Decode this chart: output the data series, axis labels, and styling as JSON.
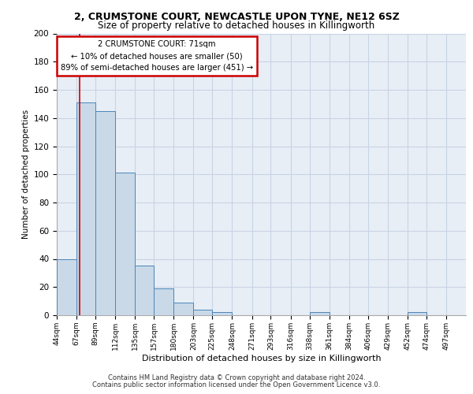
{
  "title1": "2, CRUMSTONE COURT, NEWCASTLE UPON TYNE, NE12 6SZ",
  "title2": "Size of property relative to detached houses in Killingworth",
  "xlabel": "Distribution of detached houses by size in Killingworth",
  "ylabel": "Number of detached properties",
  "bar_edges": [
    44,
    67,
    89,
    112,
    135,
    157,
    180,
    203,
    225,
    248,
    271,
    293,
    316,
    338,
    361,
    384,
    406,
    429,
    452,
    474,
    497
  ],
  "bar_heights": [
    40,
    151,
    145,
    101,
    35,
    19,
    9,
    4,
    2,
    0,
    0,
    0,
    0,
    2,
    0,
    0,
    0,
    0,
    2,
    0,
    0
  ],
  "bar_color": "#c9d9e8",
  "bar_edge_color": "#4a86b8",
  "property_size": 71,
  "annotation_line1": "2 CRUMSTONE COURT: 71sqm",
  "annotation_line2": "← 10% of detached houses are smaller (50)",
  "annotation_line3": "89% of semi-detached houses are larger (451) →",
  "red_line_color": "#cc0000",
  "annotation_box_color": "#cc0000",
  "ylim": [
    0,
    200
  ],
  "yticks": [
    0,
    20,
    40,
    60,
    80,
    100,
    120,
    140,
    160,
    180,
    200
  ],
  "grid_color": "#c8d4e4",
  "bg_color": "#e8eef6",
  "footer1": "Contains HM Land Registry data © Crown copyright and database right 2024.",
  "footer2": "Contains public sector information licensed under the Open Government Licence v3.0."
}
